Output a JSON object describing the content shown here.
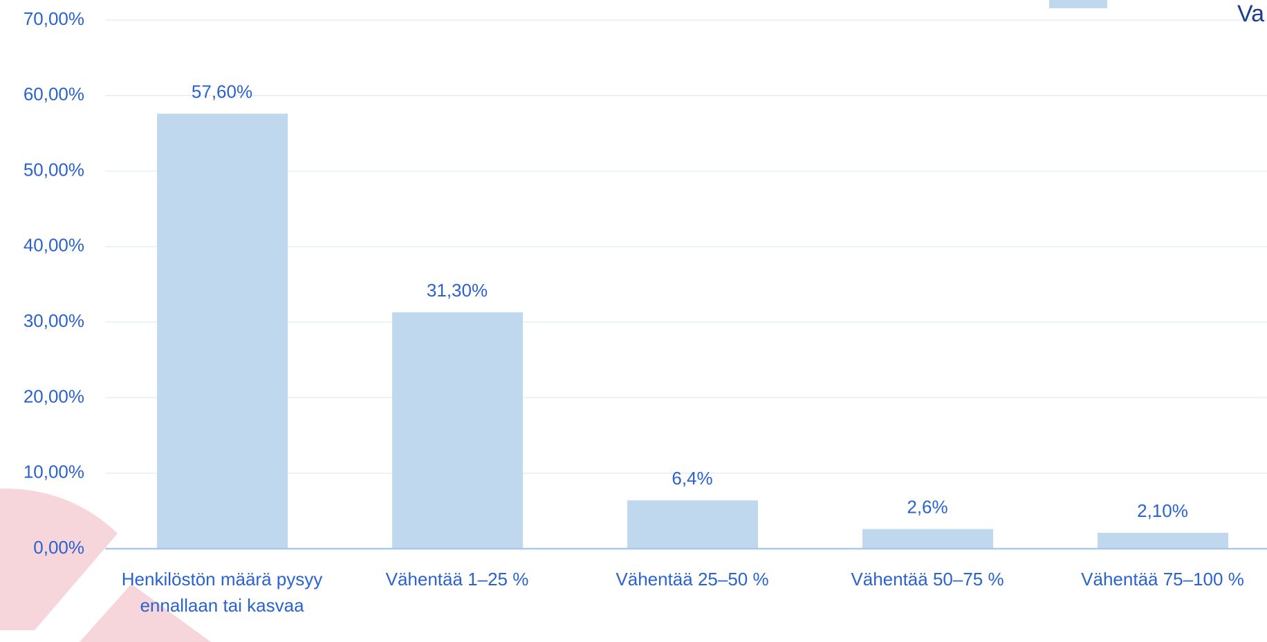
{
  "chart_data": {
    "type": "bar",
    "categories": [
      "Henkilöstön määrä pysyy ennallaan tai kasvaa",
      "Vähentää 1–25 %",
      "Vähentää 25–50 %",
      "Vähentää 50–75 %",
      "Vähentää 75–100 %"
    ],
    "series": [
      {
        "name": "Va",
        "color": "#c0d8ee",
        "values": [
          57.6,
          31.3,
          6.4,
          2.6,
          2.1
        ],
        "value_labels": [
          "57,60%",
          "31,30%",
          "6,4%",
          "2,6%",
          "2,10%"
        ]
      }
    ],
    "ylim": [
      0,
      70
    ],
    "yticks": [
      {
        "value": 0,
        "label": "0,00%"
      },
      {
        "value": 10,
        "label": "10,00%"
      },
      {
        "value": 20,
        "label": "20,00%"
      },
      {
        "value": 30,
        "label": "30,00%"
      },
      {
        "value": 40,
        "label": "40,00%"
      },
      {
        "value": 50,
        "label": "50,00%"
      },
      {
        "value": 60,
        "label": "60,00%"
      },
      {
        "value": 70,
        "label": "70,00%"
      }
    ],
    "grid": true
  }
}
